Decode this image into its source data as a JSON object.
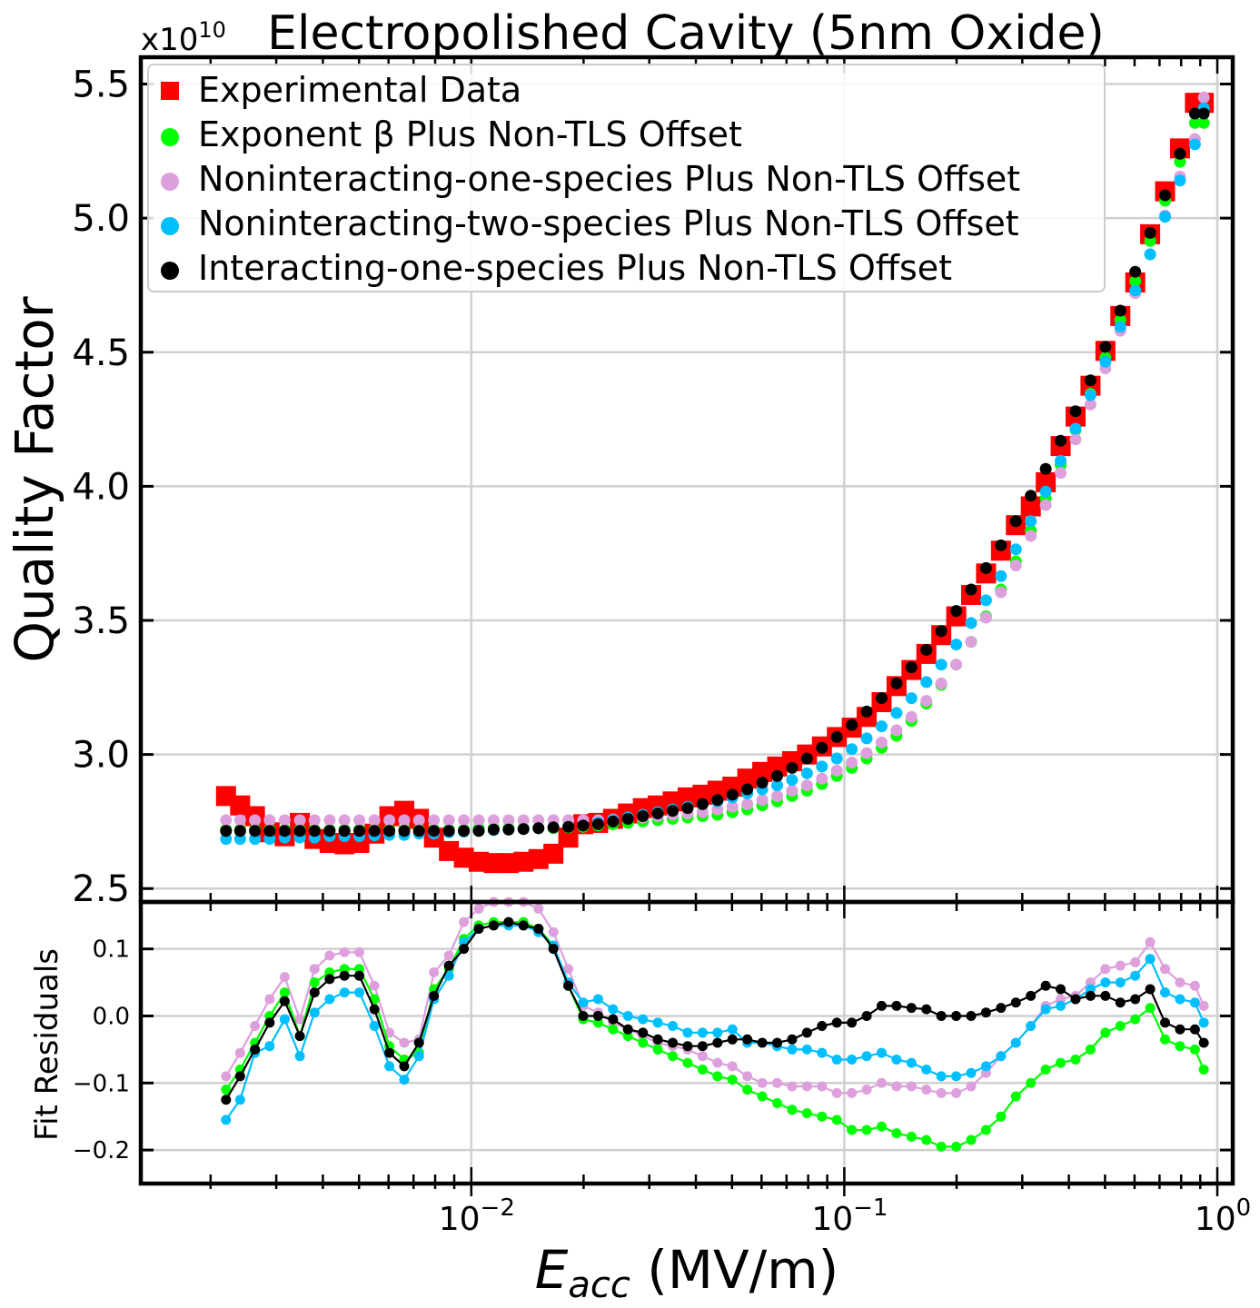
{
  "chart_data": [
    {
      "panel": "main",
      "type": "scatter",
      "title": "Electropolished Cavity (5nm Oxide)",
      "ylabel": "Quality Factor",
      "y_multiplier_label": "x10",
      "y_multiplier_exp": "10",
      "xscale": "log",
      "xlim": [
        0.0013,
        1.1
      ],
      "ylim": [
        2.45,
        5.6
      ],
      "yticks": [
        2.5,
        3.0,
        3.5,
        4.0,
        4.5,
        5.0,
        5.5
      ],
      "ytick_labels": [
        "2.5",
        "3.0",
        "3.5",
        "4.0",
        "4.5",
        "5.0",
        "5.5"
      ],
      "grid": true,
      "legend_position": "top-left",
      "x": [
        0.0022,
        0.0024,
        0.00263,
        0.00288,
        0.00316,
        0.00347,
        0.0038,
        0.00417,
        0.00457,
        0.00501,
        0.0055,
        0.00603,
        0.00661,
        0.00724,
        0.00794,
        0.00871,
        0.00955,
        0.01047,
        0.01148,
        0.01259,
        0.0138,
        0.01514,
        0.0166,
        0.0182,
        0.01995,
        0.02188,
        0.02399,
        0.0263,
        0.02884,
        0.03162,
        0.03467,
        0.03802,
        0.04169,
        0.04571,
        0.05012,
        0.05495,
        0.06026,
        0.06607,
        0.07244,
        0.07943,
        0.0871,
        0.0955,
        0.10471,
        0.11482,
        0.12589,
        0.13804,
        0.15136,
        0.16596,
        0.18197,
        0.19953,
        0.21878,
        0.23988,
        0.26303,
        0.2884,
        0.31623,
        0.34674,
        0.38019,
        0.41687,
        0.45709,
        0.50119,
        0.54954,
        0.60256,
        0.66069,
        0.72444,
        0.79433,
        0.87096,
        0.92
      ],
      "series": [
        {
          "name": "Experimental Data",
          "marker": "square",
          "color": "#ff0000",
          "values": [
            2.845,
            2.81,
            2.77,
            2.71,
            2.695,
            2.745,
            2.685,
            2.67,
            2.665,
            2.67,
            2.705,
            2.77,
            2.79,
            2.76,
            2.69,
            2.64,
            2.615,
            2.6,
            2.595,
            2.595,
            2.6,
            2.61,
            2.63,
            2.69,
            2.74,
            2.745,
            2.76,
            2.78,
            2.8,
            2.81,
            2.825,
            2.84,
            2.85,
            2.865,
            2.88,
            2.91,
            2.935,
            2.955,
            2.975,
            3.0,
            3.03,
            3.065,
            3.1,
            3.14,
            3.195,
            3.255,
            3.315,
            3.375,
            3.445,
            3.515,
            3.595,
            3.675,
            3.76,
            3.855,
            3.925,
            4.015,
            4.15,
            4.26,
            4.375,
            4.505,
            4.635,
            4.76,
            4.94,
            5.1,
            5.26,
            5.43,
            5.43
          ]
        },
        {
          "name": "Exponent β Plus Non-TLS Offset",
          "marker": "circle",
          "color": "#00ff00",
          "values": [
            2.72,
            2.72,
            2.72,
            2.72,
            2.72,
            2.72,
            2.72,
            2.72,
            2.72,
            2.72,
            2.72,
            2.72,
            2.72,
            2.72,
            2.72,
            2.72,
            2.72,
            2.725,
            2.725,
            2.725,
            2.725,
            2.725,
            2.725,
            2.728,
            2.73,
            2.735,
            2.74,
            2.745,
            2.75,
            2.755,
            2.76,
            2.765,
            2.77,
            2.775,
            2.785,
            2.795,
            2.81,
            2.825,
            2.845,
            2.865,
            2.89,
            2.92,
            2.95,
            2.985,
            3.025,
            3.07,
            3.125,
            3.19,
            3.26,
            3.335,
            3.42,
            3.515,
            3.615,
            3.72,
            3.835,
            3.955,
            4.08,
            4.21,
            4.345,
            4.48,
            4.62,
            4.765,
            4.915,
            5.065,
            5.21,
            5.355,
            5.355
          ]
        },
        {
          "name": "Noninteracting-one-species Plus Non-TLS Offset",
          "marker": "circle",
          "color": "#dda0dd",
          "values": [
            2.755,
            2.755,
            2.755,
            2.755,
            2.755,
            2.755,
            2.755,
            2.755,
            2.755,
            2.755,
            2.755,
            2.755,
            2.755,
            2.755,
            2.755,
            2.755,
            2.755,
            2.755,
            2.755,
            2.755,
            2.755,
            2.755,
            2.755,
            2.755,
            2.755,
            2.755,
            2.758,
            2.76,
            2.765,
            2.77,
            2.775,
            2.78,
            2.785,
            2.795,
            2.805,
            2.815,
            2.83,
            2.845,
            2.865,
            2.885,
            2.91,
            2.94,
            2.97,
            3.005,
            3.045,
            3.09,
            3.14,
            3.2,
            3.265,
            3.335,
            3.42,
            3.51,
            3.605,
            3.705,
            3.815,
            3.93,
            4.05,
            4.175,
            4.305,
            4.44,
            4.58,
            4.72,
            4.865,
            5.01,
            5.155,
            5.295,
            5.45
          ]
        },
        {
          "name": "Noninteracting-two-species Plus Non-TLS Offset",
          "marker": "circle",
          "color": "#00bfff",
          "values": [
            2.685,
            2.685,
            2.685,
            2.685,
            2.69,
            2.69,
            2.69,
            2.695,
            2.695,
            2.695,
            2.698,
            2.7,
            2.7,
            2.705,
            2.705,
            2.71,
            2.712,
            2.715,
            2.718,
            2.72,
            2.722,
            2.725,
            2.728,
            2.73,
            2.735,
            2.745,
            2.755,
            2.765,
            2.775,
            2.785,
            2.795,
            2.805,
            2.815,
            2.825,
            2.84,
            2.855,
            2.87,
            2.885,
            2.905,
            2.93,
            2.955,
            2.985,
            3.02,
            3.06,
            3.105,
            3.155,
            3.21,
            3.27,
            3.335,
            3.41,
            3.49,
            3.575,
            3.665,
            3.765,
            3.87,
            3.98,
            4.095,
            4.215,
            4.34,
            4.465,
            4.595,
            4.73,
            4.865,
            5.005,
            5.14,
            5.275,
            5.41
          ]
        },
        {
          "name": "Interacting-one-species Plus Non-TLS Offset",
          "marker": "circle",
          "color": "#000000",
          "values": [
            2.715,
            2.715,
            2.715,
            2.715,
            2.715,
            2.715,
            2.715,
            2.715,
            2.715,
            2.715,
            2.715,
            2.715,
            2.715,
            2.715,
            2.715,
            2.715,
            2.715,
            2.715,
            2.72,
            2.72,
            2.722,
            2.725,
            2.728,
            2.73,
            2.735,
            2.74,
            2.75,
            2.76,
            2.77,
            2.78,
            2.79,
            2.8,
            2.815,
            2.83,
            2.85,
            2.87,
            2.895,
            2.92,
            2.95,
            2.985,
            3.025,
            3.065,
            3.11,
            3.16,
            3.21,
            3.265,
            3.325,
            3.39,
            3.46,
            3.535,
            3.615,
            3.695,
            3.78,
            3.87,
            3.965,
            4.065,
            4.17,
            4.28,
            4.395,
            4.52,
            4.655,
            4.8,
            4.945,
            5.085,
            5.24,
            5.39,
            5.39
          ]
        }
      ]
    },
    {
      "panel": "residuals",
      "type": "line",
      "ylabel": "Fit Residuals",
      "xlabel_main": "E",
      "xlabel_sub": "acc",
      "xlabel_units": " (MV/m)",
      "xscale": "log",
      "xlim": [
        0.0013,
        1.1
      ],
      "ylim": [
        -0.25,
        0.17
      ],
      "yticks": [
        -0.2,
        -0.1,
        0.0,
        0.1
      ],
      "ytick_labels": [
        "−0.2",
        "−0.1",
        "0.0",
        "0.1"
      ],
      "xticks": [
        0.01,
        0.1,
        1.0
      ],
      "xtick_base": "10",
      "xtick_exponents": [
        "−2",
        "−1",
        "0"
      ],
      "grid": true,
      "x": [
        0.0022,
        0.0024,
        0.00263,
        0.00288,
        0.00316,
        0.00347,
        0.0038,
        0.00417,
        0.00457,
        0.00501,
        0.0055,
        0.00603,
        0.00661,
        0.00724,
        0.00794,
        0.00871,
        0.00955,
        0.01047,
        0.01148,
        0.01259,
        0.0138,
        0.01514,
        0.0166,
        0.0182,
        0.01995,
        0.02188,
        0.02399,
        0.0263,
        0.02884,
        0.03162,
        0.03467,
        0.03802,
        0.04169,
        0.04571,
        0.05012,
        0.05495,
        0.06026,
        0.06607,
        0.07244,
        0.07943,
        0.0871,
        0.0955,
        0.10471,
        0.11482,
        0.12589,
        0.13804,
        0.15136,
        0.16596,
        0.18197,
        0.19953,
        0.21878,
        0.23988,
        0.26303,
        0.2884,
        0.31623,
        0.34674,
        0.38019,
        0.41687,
        0.45709,
        0.50119,
        0.54954,
        0.60256,
        0.66069,
        0.72444,
        0.79433,
        0.87096,
        0.92
      ],
      "series": [
        {
          "color": "#dda0dd",
          "values": [
            -0.09,
            -0.055,
            -0.015,
            0.025,
            0.058,
            -0.005,
            0.07,
            0.09,
            0.095,
            0.095,
            0.045,
            -0.025,
            -0.04,
            -0.035,
            0.065,
            0.09,
            0.14,
            0.16,
            0.17,
            0.17,
            0.17,
            0.16,
            0.125,
            0.07,
            0.015,
            0.005,
            -0.01,
            -0.02,
            -0.03,
            -0.04,
            -0.045,
            -0.05,
            -0.06,
            -0.07,
            -0.075,
            -0.09,
            -0.1,
            -0.1,
            -0.105,
            -0.105,
            -0.105,
            -0.115,
            -0.115,
            -0.11,
            -0.1,
            -0.105,
            -0.105,
            -0.11,
            -0.115,
            -0.115,
            -0.105,
            -0.085,
            -0.06,
            -0.04,
            -0.015,
            0.015,
            0.025,
            0.03,
            0.05,
            0.07,
            0.075,
            0.08,
            0.11,
            0.07,
            0.05,
            0.045,
            0.015
          ]
        },
        {
          "color": "#00ff00",
          "values": [
            -0.11,
            -0.08,
            -0.04,
            0.0,
            0.035,
            -0.03,
            0.05,
            0.065,
            0.07,
            0.07,
            0.025,
            -0.045,
            -0.065,
            -0.055,
            0.04,
            0.07,
            0.115,
            0.135,
            0.14,
            0.14,
            0.14,
            0.13,
            0.105,
            0.045,
            -0.005,
            -0.01,
            -0.02,
            -0.03,
            -0.04,
            -0.05,
            -0.06,
            -0.07,
            -0.08,
            -0.09,
            -0.095,
            -0.11,
            -0.12,
            -0.13,
            -0.14,
            -0.145,
            -0.15,
            -0.155,
            -0.17,
            -0.17,
            -0.165,
            -0.175,
            -0.18,
            -0.185,
            -0.195,
            -0.195,
            -0.185,
            -0.17,
            -0.15,
            -0.12,
            -0.1,
            -0.08,
            -0.07,
            -0.065,
            -0.05,
            -0.025,
            -0.015,
            -0.005,
            0.012,
            -0.035,
            -0.045,
            -0.05,
            -0.08
          ]
        },
        {
          "color": "#00bfff",
          "values": [
            -0.155,
            -0.125,
            -0.055,
            -0.045,
            -0.005,
            -0.06,
            0.005,
            0.025,
            0.035,
            0.035,
            -0.015,
            -0.075,
            -0.095,
            -0.06,
            0.025,
            0.06,
            0.11,
            0.13,
            0.135,
            0.135,
            0.135,
            0.125,
            0.105,
            0.05,
            0.02,
            0.025,
            0.01,
            0.0,
            -0.005,
            -0.01,
            -0.015,
            -0.025,
            -0.025,
            -0.025,
            -0.02,
            -0.04,
            -0.04,
            -0.045,
            -0.05,
            -0.05,
            -0.055,
            -0.065,
            -0.065,
            -0.06,
            -0.055,
            -0.065,
            -0.07,
            -0.08,
            -0.09,
            -0.09,
            -0.085,
            -0.075,
            -0.06,
            -0.04,
            -0.015,
            0.01,
            0.015,
            0.025,
            0.04,
            0.05,
            0.05,
            0.06,
            0.085,
            0.035,
            0.025,
            0.02,
            -0.01
          ]
        },
        {
          "color": "#000000",
          "values": [
            -0.125,
            -0.09,
            -0.05,
            -0.01,
            0.022,
            -0.03,
            0.035,
            0.055,
            0.06,
            0.06,
            0.01,
            -0.055,
            -0.075,
            -0.04,
            0.03,
            0.075,
            0.1,
            0.13,
            0.135,
            0.14,
            0.135,
            0.13,
            0.1,
            0.045,
            0.0,
            0.0,
            -0.005,
            -0.02,
            -0.025,
            -0.035,
            -0.04,
            -0.045,
            -0.045,
            -0.04,
            -0.035,
            -0.035,
            -0.04,
            -0.04,
            -0.035,
            -0.025,
            -0.015,
            -0.01,
            -0.01,
            -0.0,
            0.015,
            0.015,
            0.012,
            0.01,
            0.0,
            0.0,
            0.0,
            0.005,
            0.012,
            0.02,
            0.03,
            0.045,
            0.04,
            0.025,
            0.03,
            0.03,
            0.02,
            0.025,
            0.04,
            -0.01,
            -0.02,
            -0.02,
            -0.04
          ]
        }
      ]
    }
  ]
}
